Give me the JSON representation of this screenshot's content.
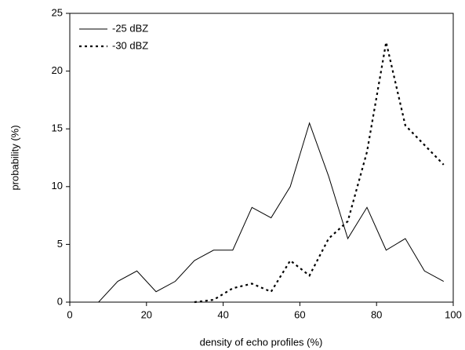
{
  "chart_data": {
    "type": "line",
    "xlabel": "density of echo profiles (%)",
    "ylabel": "probability (%)",
    "x": [
      7.5,
      12.5,
      17.5,
      22.5,
      27.5,
      32.5,
      37.5,
      42.5,
      47.5,
      52.5,
      57.5,
      62.5,
      67.5,
      72.5,
      77.5,
      82.5,
      87.5,
      92.5,
      97.5
    ],
    "series": [
      {
        "name": "-25 dBZ",
        "color": "#000000",
        "dash": "solid",
        "values": [
          0,
          1.8,
          2.7,
          0.9,
          1.8,
          3.6,
          4.5,
          4.5,
          8.2,
          7.3,
          10,
          15.5,
          10.9,
          5.5,
          8.2,
          4.5,
          5.5,
          2.7,
          1.8
        ]
      },
      {
        "name": "-30 dBZ",
        "color": "#000000",
        "dash": "dotted",
        "values": [
          null,
          null,
          null,
          null,
          null,
          0,
          0.2,
          1.2,
          1.6,
          0.9,
          3.6,
          2.3,
          5.5,
          7.0,
          13,
          22.5,
          15.3,
          13.6,
          11.9
        ]
      }
    ],
    "xlim": [
      0,
      100
    ],
    "xticks": [
      0,
      20,
      40,
      60,
      80,
      100
    ],
    "ylim": [
      0,
      25
    ],
    "yticks": [
      0,
      5,
      10,
      15,
      20,
      25
    ],
    "grid": false,
    "legend": "top-left"
  }
}
